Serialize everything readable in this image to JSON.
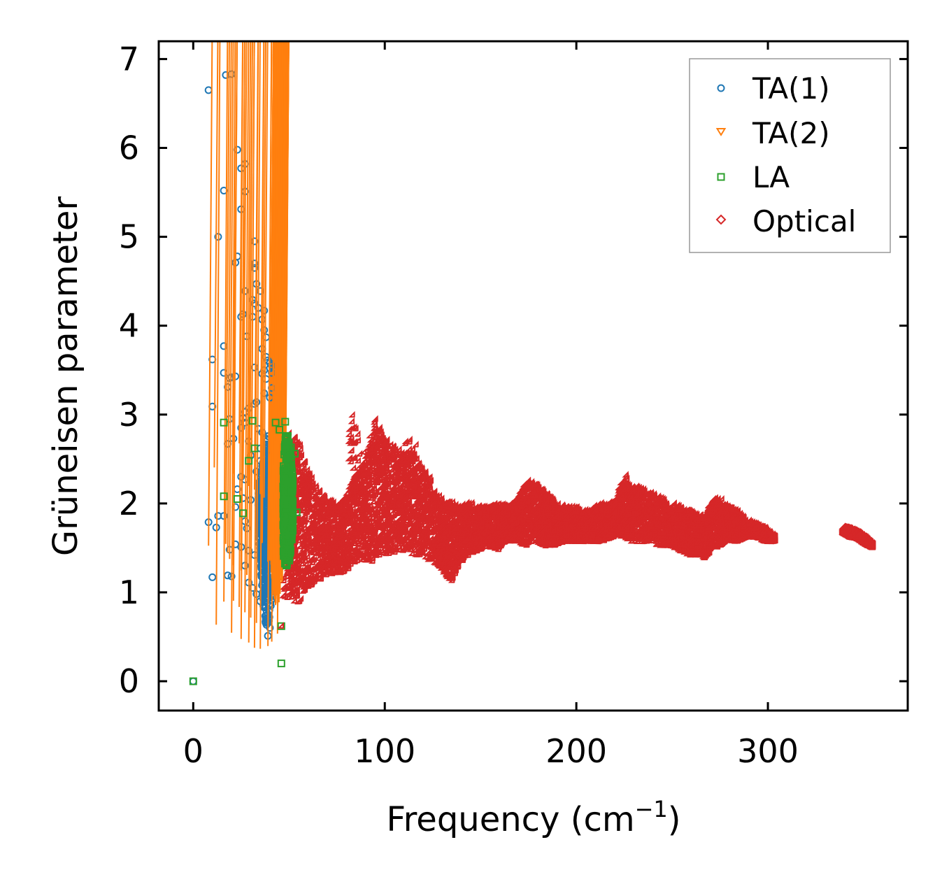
{
  "chart_data": {
    "type": "scatter",
    "title": "",
    "xlabel": "Frequency (cm",
    "xlabel_sup": "−1",
    "xlabel_close": ")",
    "ylabel": "Grüneisen parameter",
    "xlim": [
      -18,
      373
    ],
    "ylim": [
      -0.33,
      7.2
    ],
    "xticks": [
      0,
      100,
      200,
      300
    ],
    "xtick_labels": [
      "0",
      "100",
      "200",
      "300"
    ],
    "yticks": [
      0,
      1,
      2,
      3,
      4,
      5,
      6,
      7
    ],
    "ytick_labels": [
      "0",
      "1",
      "2",
      "3",
      "4",
      "5",
      "6",
      "7"
    ],
    "grid": false,
    "legend_position": "top-right",
    "series": [
      {
        "name": "TA(1)",
        "marker": "circle",
        "color": "#1f77b4",
        "points": [
          [
            0,
            0
          ],
          [
            8,
            6.65
          ],
          [
            17,
            6.82
          ],
          [
            20,
            6.83
          ],
          [
            23,
            5.98
          ],
          [
            25,
            5.77
          ],
          [
            27,
            5.82
          ],
          [
            16,
            5.52
          ],
          [
            27,
            5.51
          ],
          [
            25,
            5.31
          ],
          [
            13,
            5.0
          ],
          [
            32,
            4.95
          ],
          [
            22,
            4.71
          ],
          [
            23,
            4.78
          ],
          [
            32,
            4.7
          ],
          [
            32,
            4.65
          ],
          [
            33,
            4.47
          ],
          [
            35,
            4.39
          ],
          [
            27,
            4.39
          ],
          [
            31,
            4.29
          ],
          [
            32,
            4.25
          ],
          [
            34,
            4.2
          ],
          [
            37,
            4.17
          ],
          [
            26,
            4.13
          ],
          [
            25,
            4.1
          ],
          [
            31,
            4.1
          ],
          [
            36,
            4.07
          ],
          [
            37,
            3.95
          ],
          [
            38,
            3.87
          ],
          [
            28,
            3.88
          ],
          [
            16,
            3.77
          ],
          [
            36,
            3.74
          ],
          [
            38,
            3.65
          ],
          [
            39,
            3.61
          ],
          [
            40,
            3.58
          ],
          [
            41,
            3.55
          ],
          [
            40,
            3.52
          ],
          [
            32,
            3.53
          ],
          [
            37,
            3.5
          ],
          [
            41,
            3.47
          ],
          [
            10,
            3.62
          ],
          [
            16,
            3.47
          ],
          [
            20,
            3.42
          ],
          [
            19,
            3.41
          ],
          [
            22,
            3.43
          ],
          [
            18,
            3.31
          ],
          [
            36,
            3.46
          ],
          [
            38,
            3.4
          ],
          [
            41,
            3.3
          ],
          [
            37,
            3.24
          ],
          [
            40,
            3.19
          ],
          [
            33,
            3.14
          ],
          [
            32,
            3.12
          ],
          [
            10,
            3.09
          ],
          [
            27,
            3.03
          ],
          [
            29,
            3.07
          ],
          [
            26,
            2.96
          ],
          [
            19,
            2.95
          ],
          [
            25,
            2.85
          ],
          [
            27,
            2.91
          ],
          [
            34,
            2.84
          ],
          [
            36,
            2.8
          ],
          [
            38,
            2.73
          ],
          [
            21,
            2.73
          ],
          [
            29,
            2.7
          ],
          [
            18,
            2.67
          ],
          [
            35,
            2.62
          ],
          [
            38,
            2.57
          ],
          [
            30,
            2.54
          ],
          [
            35,
            2.48
          ],
          [
            36,
            2.42
          ],
          [
            33,
            2.36
          ],
          [
            25,
            2.3
          ],
          [
            27,
            2.27
          ],
          [
            34,
            2.23
          ],
          [
            23,
            2.16
          ],
          [
            37,
            2.12
          ],
          [
            26,
            2.06
          ],
          [
            30,
            2.04
          ],
          [
            34,
            1.98
          ],
          [
            22,
            1.96
          ],
          [
            8,
            1.79
          ],
          [
            12,
            1.73
          ],
          [
            16,
            1.86
          ],
          [
            13,
            1.86
          ],
          [
            27,
            1.8
          ],
          [
            28,
            1.72
          ],
          [
            22,
            1.54
          ],
          [
            25,
            1.51
          ],
          [
            19,
            1.48
          ],
          [
            29,
            1.47
          ],
          [
            32,
            1.42
          ],
          [
            36,
            1.38
          ],
          [
            27,
            1.3
          ],
          [
            10,
            1.17
          ],
          [
            18,
            1.19
          ],
          [
            20,
            1.18
          ],
          [
            29,
            1.11
          ],
          [
            31,
            1.05
          ],
          [
            33,
            0.98
          ],
          [
            35,
            0.9
          ],
          [
            37,
            0.83
          ],
          [
            38,
            0.74
          ],
          [
            39,
            0.66
          ],
          [
            40,
            0.6
          ],
          [
            39,
            0.51
          ]
        ]
      },
      {
        "name": "TA(2)",
        "marker": "triangle-down",
        "color": "#ff7f0e",
        "points": [
          [
            13,
            2.37
          ],
          [
            26,
            2.64
          ],
          [
            28,
            2.24
          ],
          [
            31,
            2.16
          ],
          [
            34,
            2.12
          ],
          [
            37,
            2.07
          ],
          [
            39,
            2.03
          ],
          [
            23,
            2.3
          ],
          [
            10,
            1.49
          ],
          [
            19,
            1.51
          ],
          [
            20,
            1.41
          ],
          [
            21,
            1.34
          ],
          [
            23,
            1.27
          ],
          [
            27,
            1.21
          ],
          [
            30,
            1.16
          ],
          [
            32,
            1.08
          ],
          [
            18,
            0.86
          ],
          [
            23,
            0.87
          ],
          [
            26,
            0.8
          ],
          [
            29,
            0.74
          ],
          [
            32,
            0.68
          ],
          [
            35,
            0.62
          ],
          [
            14,
            0.6
          ],
          [
            22,
            0.51
          ],
          [
            27,
            0.44
          ],
          [
            31,
            0.4
          ],
          [
            34,
            0.34
          ],
          [
            37,
            0.33
          ],
          [
            41,
            0.36
          ],
          [
            43,
            0.41
          ],
          [
            46,
            0.5
          ],
          [
            38,
            1.52
          ],
          [
            41,
            1.31
          ],
          [
            43,
            1.12
          ],
          [
            44,
            0.93
          ],
          [
            45,
            0.82
          ]
        ]
      },
      {
        "name": "LA",
        "marker": "square",
        "color": "#2ca02c",
        "points": [
          [
            0,
            0
          ],
          [
            16,
            2.91
          ],
          [
            31,
            2.93
          ],
          [
            43,
            2.91
          ],
          [
            48,
            2.92
          ],
          [
            45,
            2.83
          ],
          [
            32,
            2.62
          ],
          [
            29,
            2.48
          ],
          [
            49,
            2.76
          ],
          [
            16,
            2.08
          ],
          [
            23,
            2.05
          ],
          [
            26,
            1.89
          ],
          [
            48,
            2.4
          ],
          [
            51,
            2.63
          ],
          [
            53,
            2.56
          ],
          [
            47,
            2.19
          ],
          [
            54,
            1.9
          ],
          [
            46,
            0.62
          ],
          [
            46,
            0.2
          ]
        ]
      },
      {
        "name": "Optical",
        "marker": "diamond",
        "color": "#d62728",
        "points": [
          [
            47,
            0.6
          ]
        ]
      }
    ],
    "bands": [
      {
        "name": "TA(1)",
        "color": "#1f77b4",
        "x": [
          34,
          35,
          36,
          37,
          38,
          39,
          40,
          41,
          42,
          43
        ],
        "lo": [
          1.7,
          1.4,
          1.0,
          0.7,
          0.6,
          0.6,
          0.7,
          1.0,
          1.4,
          1.7
        ],
        "hi": [
          2.2,
          2.3,
          2.4,
          2.6,
          2.7,
          2.8,
          2.7,
          2.5,
          2.3,
          2.1
        ]
      },
      {
        "name": "TA(2)",
        "color": "#ff7f0e",
        "x": [
          42,
          44,
          46,
          48,
          50
        ],
        "lo": [
          1.3,
          0.9,
          0.75,
          1.0,
          1.3
        ],
        "hi": [
          2.2,
          2.55,
          2.7,
          2.6,
          2.4
        ]
      },
      {
        "name": "LA",
        "color": "#2ca02c",
        "x": [
          47,
          48,
          49,
          50,
          51,
          52
        ],
        "lo": [
          1.4,
          1.3,
          1.3,
          1.35,
          1.5,
          1.7
        ],
        "hi": [
          2.4,
          2.75,
          2.8,
          2.7,
          2.55,
          2.3
        ]
      },
      {
        "name": "Optical",
        "color": "#d62728",
        "x": [
          48,
          52,
          56,
          60,
          65,
          70,
          75,
          80,
          85,
          90,
          94,
          96,
          100,
          104,
          108,
          112,
          116,
          120,
          124,
          128,
          132,
          136,
          140,
          145,
          150,
          155,
          160,
          165,
          170,
          175,
          180,
          185,
          190,
          195,
          200,
          205,
          210,
          215,
          220,
          225,
          230,
          235,
          240,
          245,
          250,
          255,
          260,
          265,
          268,
          272,
          276,
          280,
          285,
          290,
          295,
          300,
          305
        ],
        "lo": [
          0.9,
          0.9,
          0.85,
          1.0,
          1.1,
          1.15,
          1.2,
          1.2,
          1.3,
          1.35,
          1.3,
          1.35,
          1.4,
          1.4,
          1.45,
          1.45,
          1.4,
          1.4,
          1.35,
          1.3,
          1.2,
          1.1,
          1.3,
          1.4,
          1.45,
          1.5,
          1.45,
          1.55,
          1.55,
          1.5,
          1.55,
          1.5,
          1.5,
          1.55,
          1.55,
          1.55,
          1.55,
          1.55,
          1.6,
          1.6,
          1.55,
          1.55,
          1.55,
          1.5,
          1.5,
          1.45,
          1.4,
          1.4,
          1.35,
          1.45,
          1.5,
          1.55,
          1.55,
          1.6,
          1.6,
          1.55,
          1.55
        ],
        "hi": [
          2.75,
          2.8,
          2.7,
          2.4,
          2.2,
          2.05,
          2.0,
          2.05,
          2.3,
          2.45,
          2.7,
          2.95,
          2.75,
          2.65,
          2.6,
          2.55,
          2.55,
          2.4,
          2.3,
          2.1,
          2.0,
          2.0,
          1.95,
          2.0,
          1.95,
          1.95,
          2.0,
          1.95,
          2.05,
          2.25,
          2.2,
          2.1,
          2.0,
          1.95,
          1.95,
          1.9,
          1.95,
          2.0,
          2.0,
          2.25,
          2.2,
          2.15,
          2.1,
          2.05,
          2.0,
          1.95,
          1.9,
          1.85,
          1.85,
          2.05,
          2.05,
          1.95,
          1.9,
          1.8,
          1.75,
          1.7,
          1.6
        ]
      },
      {
        "name": "Optical",
        "color": "#d62728",
        "x": [
          340,
          344,
          348,
          352,
          356
        ],
        "lo": [
          1.65,
          1.6,
          1.58,
          1.52,
          1.48
        ],
        "hi": [
          1.72,
          1.7,
          1.66,
          1.6,
          1.52
        ]
      }
    ],
    "spikes": [
      {
        "color": "#d62728",
        "x": [
          83,
          86,
          89,
          94,
          97,
          100,
          113,
          117,
          226,
          229
        ],
        "y": [
          3.0,
          2.85,
          2.65,
          2.9,
          2.95,
          2.75,
          2.7,
          2.65,
          2.3,
          2.25
        ]
      }
    ]
  }
}
